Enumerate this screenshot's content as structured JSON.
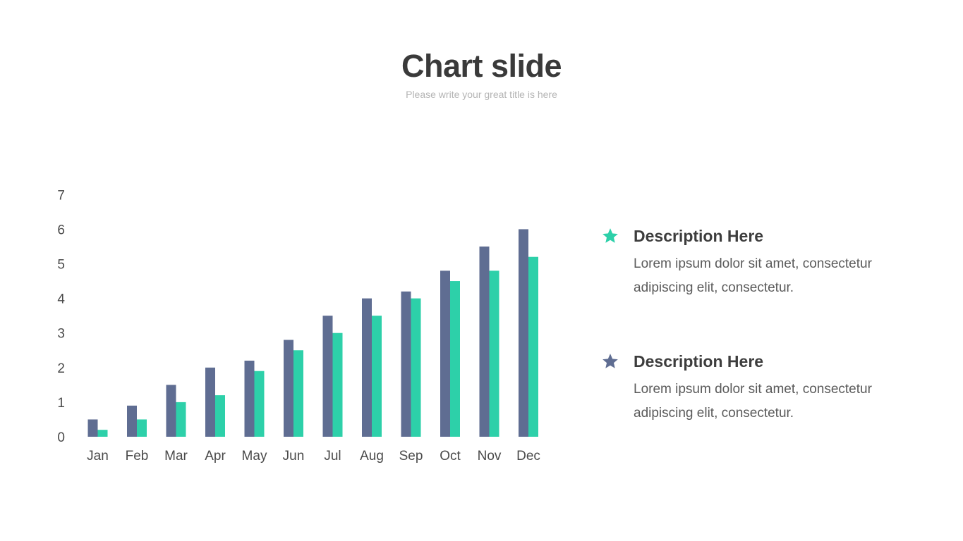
{
  "slide": {
    "title": "Chart slide",
    "subtitle": "Please write your great title is here"
  },
  "descriptions": [
    {
      "icon": "star-icon",
      "color": "#2dd0a9",
      "title": "Description Here",
      "body": "Lorem ipsum dolor sit amet, consectetur adipiscing elit, consectetur."
    },
    {
      "icon": "star-icon",
      "color": "#5f6d92",
      "title": "Description Here",
      "body": "Lorem ipsum dolor sit amet, consectetur adipiscing elit, consectetur."
    }
  ],
  "chart_data": {
    "type": "bar",
    "categories": [
      "Jan",
      "Feb",
      "Mar",
      "Apr",
      "May",
      "Jun",
      "Jul",
      "Aug",
      "Sep",
      "Oct",
      "Nov",
      "Dec"
    ],
    "series": [
      {
        "color": "#5f6d92",
        "values": [
          0.5,
          0.9,
          1.5,
          2.0,
          2.2,
          2.8,
          3.5,
          4.0,
          4.2,
          4.8,
          5.5,
          6.0
        ]
      },
      {
        "color": "#2dd0a9",
        "values": [
          0.2,
          0.5,
          1.0,
          1.2,
          1.9,
          2.5,
          3.0,
          3.5,
          4.0,
          4.5,
          4.8,
          5.2
        ]
      }
    ],
    "yticks": [
      "0",
      "1",
      "2",
      "3",
      "4",
      "5",
      "6",
      "7"
    ],
    "ylim": [
      0,
      7
    ],
    "grid": false,
    "legend": false
  }
}
